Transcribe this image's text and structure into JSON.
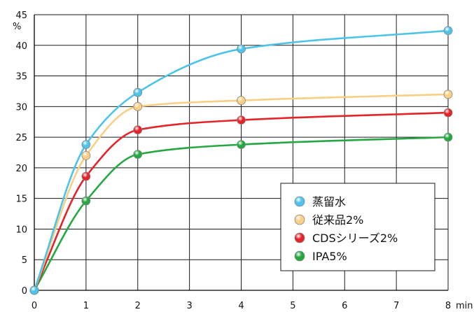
{
  "chart_data": {
    "type": "line",
    "x": [
      0,
      1,
      2,
      4,
      8
    ],
    "x_ticks": [
      0,
      1,
      2,
      3,
      4,
      5,
      6,
      7,
      8
    ],
    "y_ticks": [
      0,
      5,
      10,
      15,
      20,
      25,
      30,
      35,
      40,
      45
    ],
    "xlim": [
      0,
      8
    ],
    "ylim": [
      0,
      45
    ],
    "x_unit": "min",
    "y_unit": "%",
    "grid": true,
    "legend_position": "bottom-right",
    "series": [
      {
        "name": "蒸留水",
        "values": [
          0,
          23.8,
          32.3,
          39.4,
          42.4
        ],
        "color": "#4dc3ea"
      },
      {
        "name": "従来品2%",
        "values": [
          0,
          22.0,
          30.0,
          31.0,
          32.0
        ],
        "color": "#f8cf83"
      },
      {
        "name": "CDSシリーズ2%",
        "values": [
          0,
          18.6,
          26.2,
          27.8,
          29.0
        ],
        "color": "#e3252a"
      },
      {
        "name": "IPA5%",
        "values": [
          0,
          14.6,
          22.2,
          23.8,
          25.0
        ],
        "color": "#25a843"
      }
    ]
  }
}
